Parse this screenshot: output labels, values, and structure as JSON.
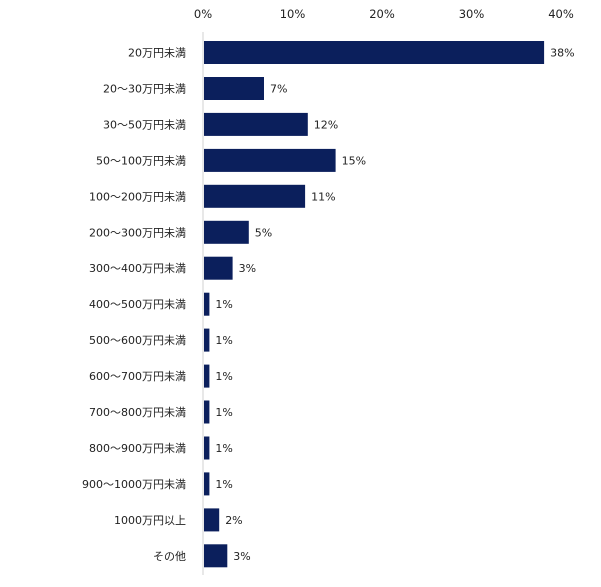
{
  "chart_data": {
    "type": "bar",
    "orientation": "horizontal",
    "categories": [
      "20万円未満",
      "20～30万円未満",
      "30～50万円未満",
      "50～100万円未満",
      "100～200万円未満",
      "200～300万円未満",
      "300～400万円未満",
      "400～500万円未満",
      "500～600万円未満",
      "600～700万円未満",
      "700～800万円未満",
      "800～900万円未満",
      "900～1000万円未満",
      "1000万円以上",
      "その他"
    ],
    "values": [
      38,
      7,
      12,
      15,
      11,
      5,
      3,
      1,
      1,
      1,
      1,
      1,
      1,
      2,
      3
    ],
    "plot_values": [
      38,
      6.7,
      11.6,
      14.7,
      11.3,
      5.0,
      3.2,
      0.6,
      0.6,
      0.6,
      0.6,
      0.6,
      0.6,
      1.7,
      2.6
    ],
    "value_labels": [
      "38%",
      "7%",
      "12%",
      "15%",
      "11%",
      "5%",
      "3%",
      "1%",
      "1%",
      "1%",
      "1%",
      "1%",
      "1%",
      "2%",
      "3%"
    ],
    "x_ticks": [
      0,
      10,
      20,
      30,
      40
    ],
    "x_tick_labels": [
      "0%",
      "10%",
      "20%",
      "30%",
      "40%"
    ],
    "xlim": [
      0,
      40
    ],
    "axis_position": "top",
    "grid": false,
    "bar_color": "#0b1f5c",
    "axis_color": "#d0d0d0"
  }
}
